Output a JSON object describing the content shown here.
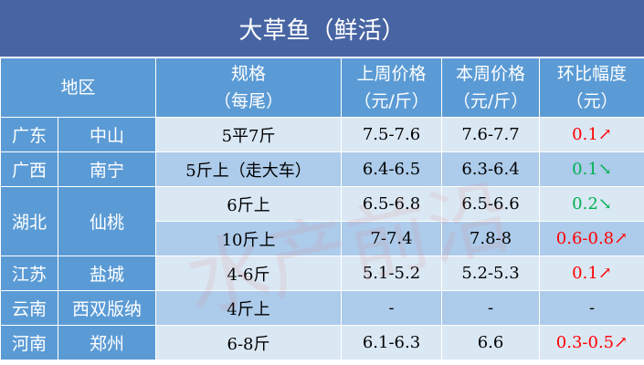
{
  "title": "大草鱼（鲜活）",
  "headers": {
    "region": "地区",
    "spec": "规格",
    "spec_unit": "（每尾）",
    "last": "上周价格",
    "last_unit": "（元/斤）",
    "this": "本周价格",
    "this_unit": "（元/斤）",
    "change": "环比幅度",
    "change_unit": "（元）"
  },
  "rows": [
    {
      "province": "广东",
      "city": "中山",
      "spec": "5平7斤",
      "last": "7.5-7.6",
      "this": "7.6-7.7",
      "change": "0.1↗",
      "dir": "up"
    },
    {
      "province": "广西",
      "city": "南宁",
      "spec": "5斤上（走大车）",
      "last": "6.4-6.5",
      "this": "6.3-6.4",
      "change": "0.1↘",
      "dir": "down"
    },
    {
      "province": "湖北",
      "city": "仙桃",
      "spec": "6斤上",
      "last": "6.5-6.8",
      "this": "6.5-6.6",
      "change": "0.2↘",
      "dir": "down"
    },
    {
      "province": "",
      "city": "",
      "spec": "10斤上",
      "last": "7-7.4",
      "this": "7.8-8",
      "change": "0.6-0.8↗",
      "dir": "up"
    },
    {
      "province": "江苏",
      "city": "盐城",
      "spec": "4-6斤",
      "last": "5.1-5.2",
      "this": "5.2-5.3",
      "change": "0.1↗",
      "dir": "up"
    },
    {
      "province": "云南",
      "city": "西双版纳",
      "spec": "4斤上",
      "last": "-",
      "this": "-",
      "change": "-",
      "dir": "none"
    },
    {
      "province": "河南",
      "city": "郑州",
      "spec": "6-8斤",
      "last": "6.1-6.3",
      "this": "6.6",
      "change": "0.3-0.5↗",
      "dir": "up"
    }
  ],
  "watermark": "水产前沿",
  "colors": {
    "title_bg": "#4865a3",
    "header_bg": "#5b9bd5",
    "row_light": "#dae8f4",
    "row_dark": "#adcbea",
    "up": "#ff0000",
    "down": "#00b050"
  }
}
